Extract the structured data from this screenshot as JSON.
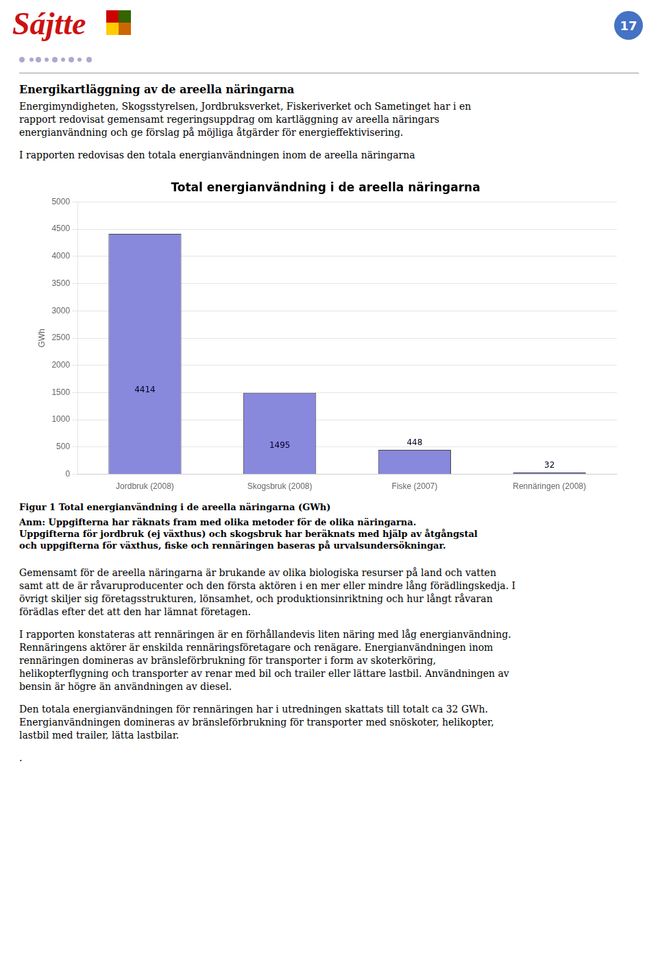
{
  "page": {
    "logo": "Sájtte",
    "page_number": "17",
    "heading": "Energikartläggning av de areella näringarna",
    "before_chart": [
      [
        "Energimyndigheten, Skogsstyrelsen, Jordbruksverket, Fiskeriverket och Sametinget har i en",
        "rapport redovisat gemensamt  regeringsuppdrag om kartläggning av areella näringars",
        "energianvändning och ge förslag på möjliga åtgärder för energieffektivisering."
      ],
      [
        "I rapporten redovisas den totala energianvändningen inom de areella näringarna"
      ]
    ],
    "caption": "Figur 1 Total energianvändning i de areella näringarna (GWh)",
    "notes": [
      "Anm: Uppgifterna har räknats fram med olika metoder för de olika näringarna.",
      "Uppgifterna för jordbruk (ej växthus) och skogsbruk har beräknats med hjälp av åtgångstal",
      "och uppgifterna för växthus, fiske och rennäringen baseras på urvalsundersökningar."
    ],
    "after_chart": [
      [
        "Gemensamt för de areella näringarna är brukande av olika biologiska resurser på land och vatten",
        "samt att de är råvaruproducenter och den första aktören i en mer eller mindre lång förädlingskedja. I",
        "övrigt skiljer sig företagsstrukturen, lönsamhet, och produktionsinriktning och hur långt råvaran",
        "förädlas efter det att den har lämnat företagen."
      ],
      [
        "I rapporten konstateras att rennäringen är en förhållandevis liten näring med låg energianvändning.",
        "Rennäringens aktörer är enskilda rennäringsföretagare och renägare. Energianvändningen inom",
        "rennäringen domineras av bränsleförbrukning för transporter i form av skoterköring,",
        "helikopterflygning och transporter av renar med bil och trailer eller lättare lastbil. Användningen av",
        "bensin är högre än användningen av diesel."
      ],
      [
        "Den totala energianvändningen för rennäringen har i utredningen skattats till totalt ca 32 GWh.",
        "Energianvändningen domineras av bränsleförbrukning för transporter med snöskoter, helikopter,",
        "lastbil med trailer, lätta lastbilar."
      ],
      [
        "."
      ]
    ]
  },
  "chart_data": {
    "type": "bar",
    "title": "Total energianvändning i de areella näringarna",
    "categories": [
      "Jordbruk (2008)",
      "Skogsbruk (2008)",
      "Fiske (2007)",
      "Rennäringen (2008)"
    ],
    "values": [
      4414,
      1495,
      448,
      32
    ],
    "color": "#8888dd",
    "ylabel": "GWh",
    "ylim": [
      0,
      5000
    ],
    "yticks": [
      0,
      500,
      1000,
      1500,
      2000,
      2500,
      3000,
      3500,
      4000,
      4500,
      5000
    ],
    "grid": true,
    "data_labels": true
  }
}
